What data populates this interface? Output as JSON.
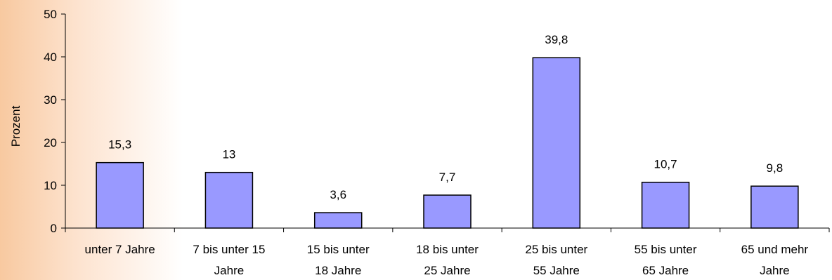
{
  "chart_data": {
    "type": "bar",
    "title": "",
    "xlabel": "",
    "ylabel": "Prozent",
    "ylim": [
      0,
      50
    ],
    "yticks": [
      "0",
      "10",
      "20",
      "30",
      "40",
      "50"
    ],
    "categories": [
      [
        "unter 7 Jahre"
      ],
      [
        "7 bis unter 15",
        "Jahre"
      ],
      [
        "15 bis unter",
        "18 Jahre"
      ],
      [
        "18 bis unter",
        "25 Jahre"
      ],
      [
        "25 bis unter",
        "55 Jahre"
      ],
      [
        "55 bis unter",
        "65 Jahre"
      ],
      [
        "65 und mehr",
        "Jahre"
      ]
    ],
    "values": [
      15.3,
      13,
      3.6,
      7.7,
      39.8,
      10.7,
      9.8
    ],
    "value_labels": [
      "15,3",
      "13",
      "3,6",
      "7,7",
      "39,8",
      "10,7",
      "9,8"
    ],
    "bar_color": "#9999ff",
    "bar_edge_color": "#000000",
    "grid": false,
    "legend": false
  }
}
